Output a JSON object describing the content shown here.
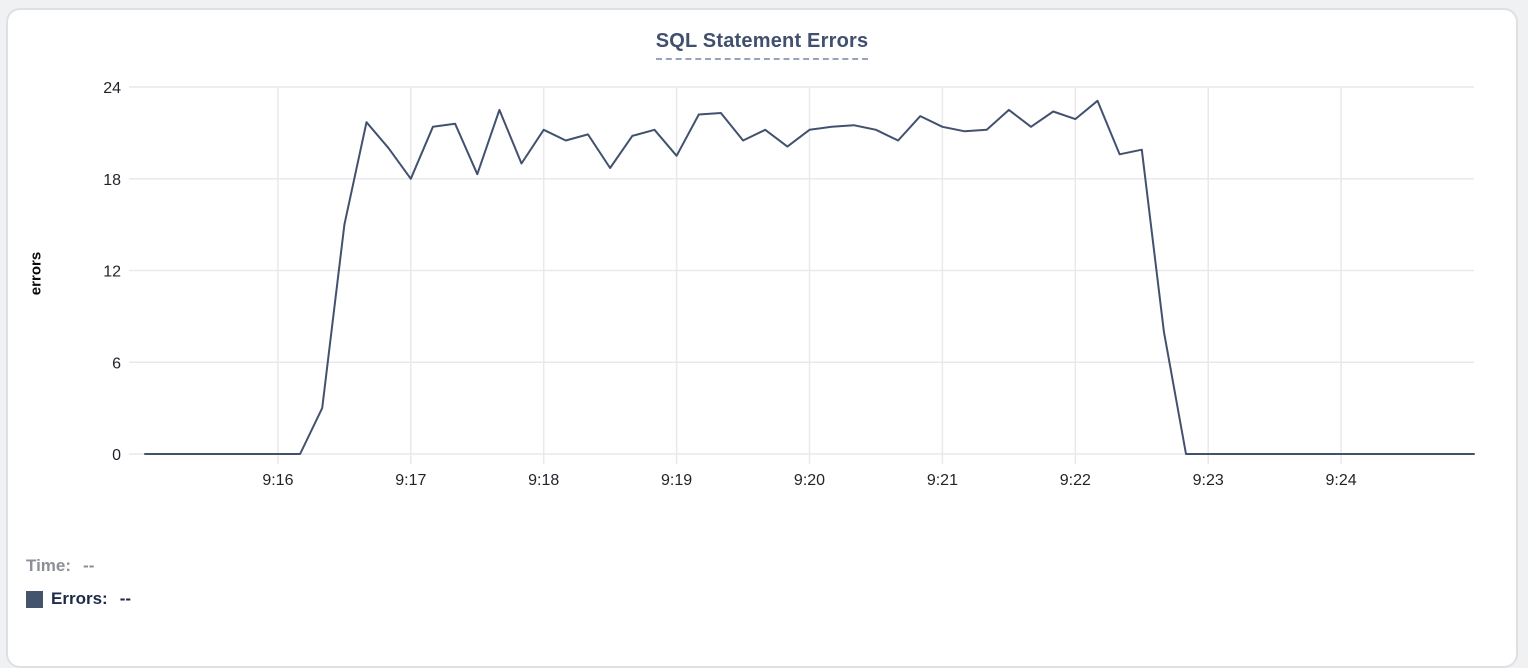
{
  "card": {
    "title": "SQL Statement Errors"
  },
  "chart_data": {
    "type": "line",
    "title": "SQL Statement Errors",
    "xlabel": "",
    "ylabel": "errors",
    "ylim": [
      0,
      24
    ],
    "y_ticks": [
      0,
      6,
      12,
      18,
      24
    ],
    "x_ticks": [
      "9:16",
      "9:17",
      "9:18",
      "9:19",
      "9:20",
      "9:21",
      "9:22",
      "9:23",
      "9:24"
    ],
    "x_start": "9:15:00",
    "x_end": "9:25:00",
    "interval_seconds": 10,
    "grid": true,
    "legend_position": "none",
    "line_color": "#42526e",
    "grid_color": "#e9e9eb",
    "tick_text_color": "#1f2329",
    "values": [
      0,
      0,
      0,
      0,
      0,
      0,
      0,
      0,
      3,
      15,
      21.7,
      20,
      18,
      21.4,
      21.6,
      18.3,
      22.5,
      19,
      21.2,
      20.5,
      20.9,
      18.7,
      20.8,
      21.2,
      19.5,
      22.2,
      22.3,
      20.5,
      21.2,
      20.1,
      21.2,
      21.4,
      21.5,
      21.2,
      20.5,
      22.1,
      21.4,
      21.1,
      21.2,
      22.5,
      21.4,
      22.4,
      21.9,
      23.1,
      19.6,
      19.9,
      8,
      0,
      0,
      0,
      0,
      0,
      0,
      0,
      0,
      0,
      0,
      0,
      0,
      0,
      0
    ]
  },
  "tooltip": {
    "time_label": "Time:",
    "time_value": "--",
    "errors_label": "Errors:",
    "errors_value": "--",
    "swatch_color": "#44546d"
  }
}
